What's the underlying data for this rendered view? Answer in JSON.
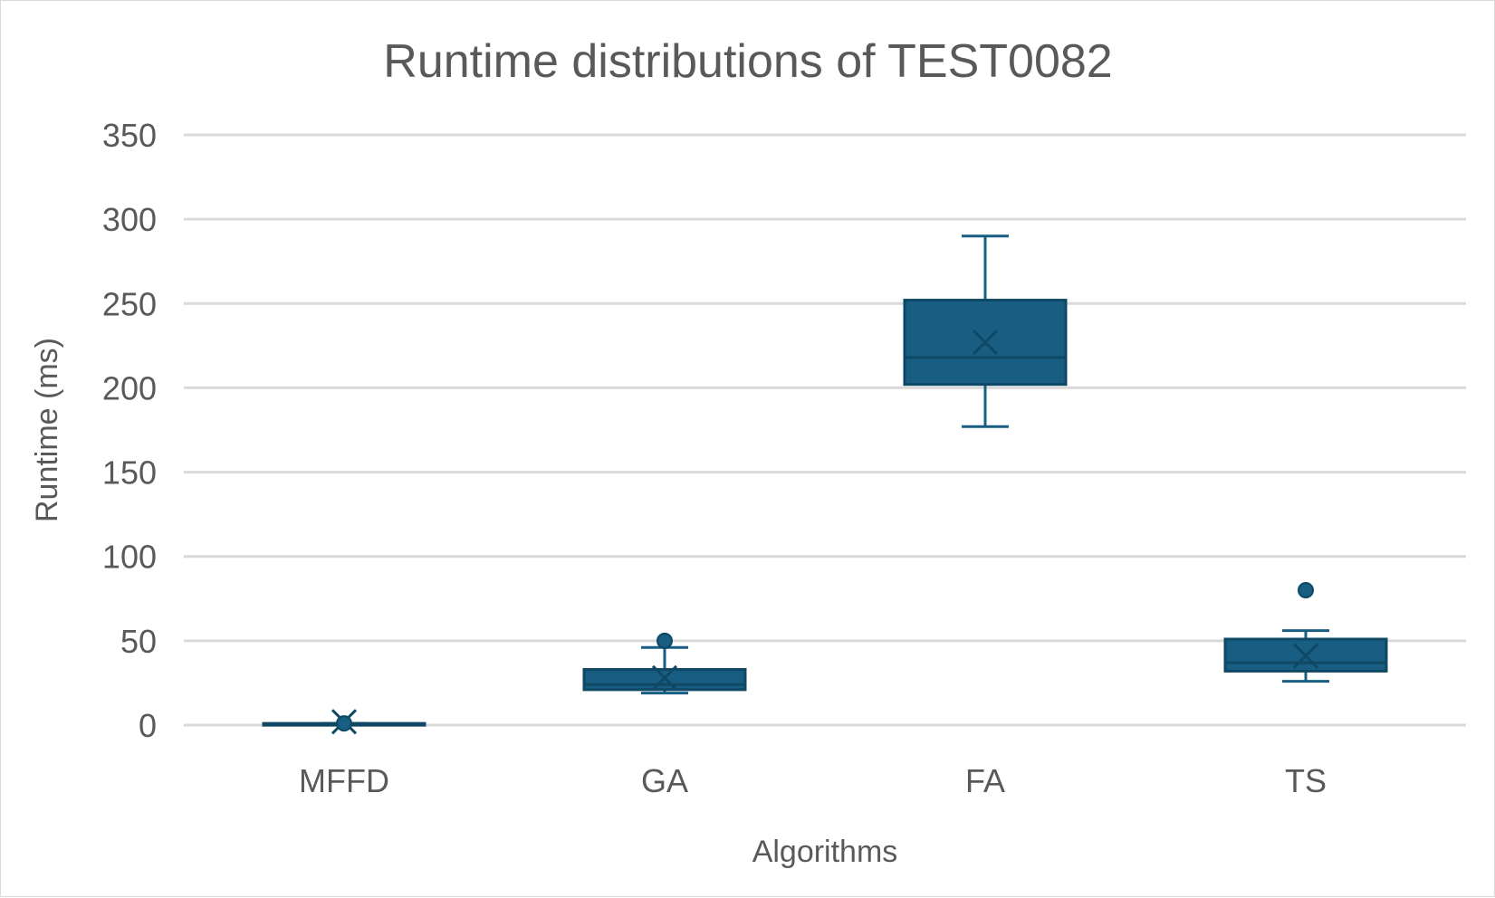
{
  "chart_data": {
    "type": "box",
    "title": "Runtime distributions of TEST0082",
    "xlabel": "Algorithms",
    "ylabel": "Runtime (ms)",
    "ylim": [
      0,
      350
    ],
    "yticks": [
      0,
      50,
      100,
      150,
      200,
      250,
      300,
      350
    ],
    "grid": true,
    "legend": "none",
    "color": "#175e82",
    "categories": [
      "MFFD",
      "GA",
      "FA",
      "TS"
    ],
    "boxes": [
      {
        "category": "MFFD",
        "min": 0,
        "q1": 0,
        "median": 0,
        "q3": 1,
        "max": 1,
        "mean": 2,
        "outliers": [
          1
        ]
      },
      {
        "category": "GA",
        "min": 19,
        "q1": 21,
        "median": 24,
        "q3": 33,
        "max": 46,
        "mean": 28,
        "outliers": [
          50
        ]
      },
      {
        "category": "FA",
        "min": 177,
        "q1": 202,
        "median": 218,
        "q3": 252,
        "max": 290,
        "mean": 227,
        "outliers": []
      },
      {
        "category": "TS",
        "min": 26,
        "q1": 32,
        "median": 37,
        "q3": 51,
        "max": 56,
        "mean": 41,
        "outliers": [
          80
        ]
      }
    ]
  }
}
